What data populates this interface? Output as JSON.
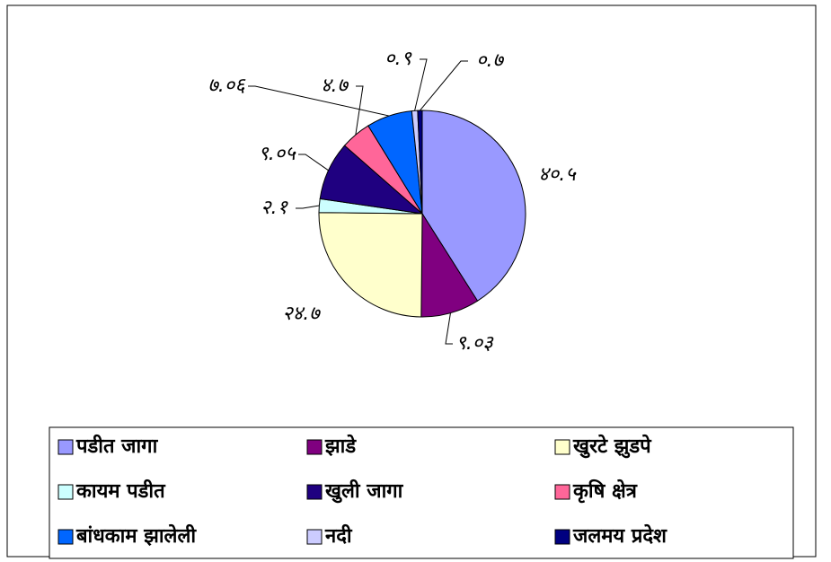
{
  "chart_data": {
    "type": "pie",
    "categories": [
      "पडीत जागा",
      "झाडे",
      "खुरटे झुडपे",
      "कायम पडीत",
      "खुली जागा",
      "कृषि क्षेत्र",
      "बांधकाम झालेली",
      "नदी",
      "जलमय प्रदेश"
    ],
    "values": [
      40.5,
      9.03,
      24.7,
      2.1,
      9.05,
      4.7,
      7.06,
      0.9,
      0.7
    ],
    "value_labels": [
      "४०.५",
      "९.०३",
      "२४.७",
      "२.१",
      "९.०५",
      "४.७",
      "७.०६",
      "०.९",
      "०.७"
    ],
    "colors": [
      "#9999ff",
      "#800080",
      "#ffffcc",
      "#ccffff",
      "#1f0080",
      "#ff6699",
      "#0066ff",
      "#ccccff",
      "#000080"
    ],
    "legend": "bottom"
  }
}
